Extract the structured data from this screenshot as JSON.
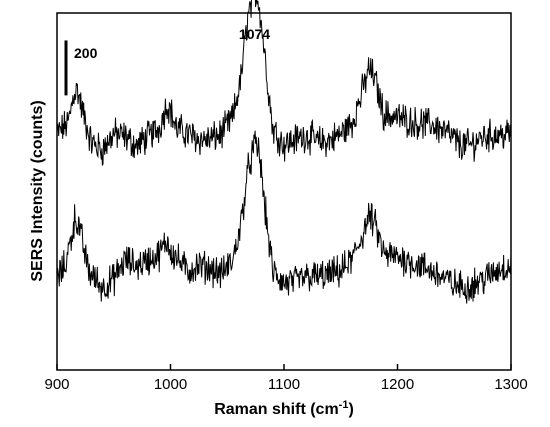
{
  "chart_data": {
    "type": "line",
    "xlabel": "Raman shift (cm",
    "xlabel_sup": "-1",
    "xlabel_close": ")",
    "ylabel": "SERS Intensity (counts)",
    "xlim": [
      900,
      1300
    ],
    "xticks": [
      900,
      1000,
      1100,
      1200,
      1300
    ],
    "ylim": [
      0,
      1300
    ],
    "y_ticks_shown": false,
    "grid": false,
    "scale_bar": {
      "label": "200",
      "value": 200
    },
    "peak_annotation": {
      "label": "1074",
      "x": 1074
    },
    "series": [
      {
        "points": [
          [
            900,
            860
          ],
          [
            910,
            900
          ],
          [
            915,
            1010
          ],
          [
            918,
            1020
          ],
          [
            922,
            950
          ],
          [
            930,
            830
          ],
          [
            940,
            800
          ],
          [
            950,
            860
          ],
          [
            960,
            850
          ],
          [
            970,
            815
          ],
          [
            980,
            850
          ],
          [
            990,
            880
          ],
          [
            997,
            970
          ],
          [
            1000,
            945
          ],
          [
            1005,
            880
          ],
          [
            1015,
            860
          ],
          [
            1025,
            840
          ],
          [
            1035,
            840
          ],
          [
            1045,
            860
          ],
          [
            1055,
            920
          ],
          [
            1062,
            1060
          ],
          [
            1068,
            1280
          ],
          [
            1074,
            1380
          ],
          [
            1078,
            1340
          ],
          [
            1083,
            1150
          ],
          [
            1090,
            880
          ],
          [
            1100,
            820
          ],
          [
            1110,
            840
          ],
          [
            1120,
            855
          ],
          [
            1130,
            830
          ],
          [
            1140,
            835
          ],
          [
            1150,
            860
          ],
          [
            1160,
            900
          ],
          [
            1168,
            1000
          ],
          [
            1175,
            1100
          ],
          [
            1180,
            1060
          ],
          [
            1188,
            930
          ],
          [
            1195,
            925
          ],
          [
            1200,
            920
          ],
          [
            1215,
            900
          ],
          [
            1230,
            895
          ],
          [
            1245,
            860
          ],
          [
            1255,
            820
          ],
          [
            1265,
            820
          ],
          [
            1275,
            850
          ],
          [
            1285,
            855
          ],
          [
            1300,
            860
          ]
        ]
      },
      {
        "points": [
          [
            900,
            330
          ],
          [
            907,
            380
          ],
          [
            912,
            470
          ],
          [
            916,
            560
          ],
          [
            920,
            510
          ],
          [
            928,
            360
          ],
          [
            940,
            300
          ],
          [
            950,
            330
          ],
          [
            960,
            400
          ],
          [
            970,
            380
          ],
          [
            980,
            400
          ],
          [
            990,
            420
          ],
          [
            997,
            470
          ],
          [
            1001,
            430
          ],
          [
            1005,
            410
          ],
          [
            1015,
            360
          ],
          [
            1025,
            380
          ],
          [
            1035,
            370
          ],
          [
            1045,
            350
          ],
          [
            1055,
            400
          ],
          [
            1062,
            530
          ],
          [
            1068,
            720
          ],
          [
            1074,
            820
          ],
          [
            1078,
            800
          ],
          [
            1083,
            600
          ],
          [
            1090,
            360
          ],
          [
            1100,
            315
          ],
          [
            1110,
            320
          ],
          [
            1120,
            340
          ],
          [
            1130,
            340
          ],
          [
            1140,
            345
          ],
          [
            1150,
            360
          ],
          [
            1160,
            400
          ],
          [
            1168,
            480
          ],
          [
            1175,
            560
          ],
          [
            1180,
            530
          ],
          [
            1188,
            420
          ],
          [
            1195,
            415
          ],
          [
            1205,
            405
          ],
          [
            1220,
            380
          ],
          [
            1235,
            350
          ],
          [
            1250,
            310
          ],
          [
            1260,
            300
          ],
          [
            1270,
            320
          ],
          [
            1280,
            340
          ],
          [
            1290,
            370
          ],
          [
            1300,
            380
          ]
        ]
      }
    ]
  }
}
